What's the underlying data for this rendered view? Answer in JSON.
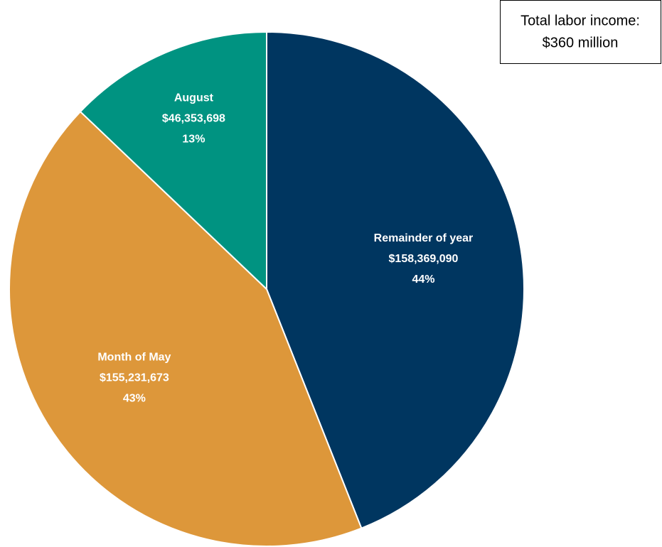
{
  "chart_data": {
    "type": "pie",
    "categories": [
      "Remainder of year",
      "Month of May",
      "August"
    ],
    "values": [
      158369090,
      155231673,
      46353698
    ],
    "value_labels": [
      "$158,369,090",
      "$155,231,673",
      "$46,353,698"
    ],
    "percentages": [
      44,
      43,
      13
    ],
    "percent_labels": [
      "44%",
      "43%",
      "13%"
    ],
    "colors": [
      "#003660",
      "#dd973a",
      "#009381"
    ],
    "annotation": [
      "Total labor income:",
      "$360 million"
    ]
  }
}
